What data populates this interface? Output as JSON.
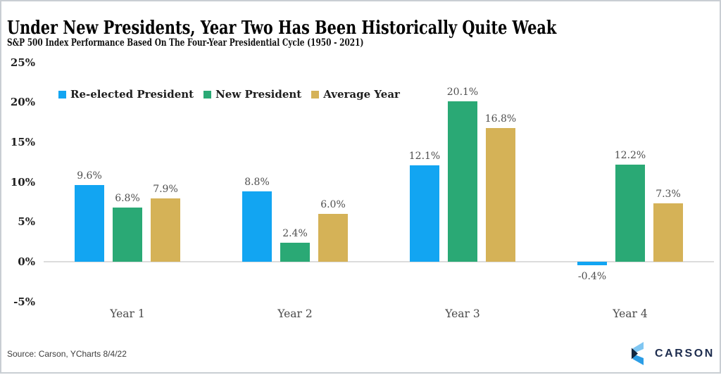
{
  "header": {
    "title": "Under New Presidents, Year Two Has Been Historically Quite Weak",
    "subtitle": "S&P 500 Index Performance Based On The Four-Year Presidential Cycle (1950 - 2021)"
  },
  "chart_data": {
    "type": "bar",
    "title": "Under New Presidents, Year Two Has Been Historically Quite Weak",
    "subtitle": "S&P 500 Index Performance Based On The Four-Year Presidential Cycle (1950 - 2021)",
    "categories": [
      "Year 1",
      "Year 2",
      "Year 3",
      "Year 4"
    ],
    "series": [
      {
        "name": "Re-elected President",
        "color": "#12a5f2",
        "values": [
          9.6,
          8.8,
          12.1,
          -0.4
        ]
      },
      {
        "name": "New President",
        "color": "#2aa975",
        "values": [
          6.8,
          2.4,
          20.1,
          12.2
        ]
      },
      {
        "name": "Average Year",
        "color": "#d5b257",
        "values": [
          7.9,
          6.0,
          16.8,
          7.3
        ]
      }
    ],
    "value_label_suffix": "%",
    "yticks": [
      25,
      20,
      15,
      10,
      5,
      0,
      -5
    ],
    "ytick_suffix": "%",
    "ylim": [
      -7.5,
      26.5
    ],
    "grid": "zero-line-only",
    "legend_position": "top-left",
    "xlabel": "",
    "ylabel": ""
  },
  "footer": {
    "source": "Source: Carson, YCharts 8/4/22",
    "logo_text": "CARSON"
  },
  "logo_colors": {
    "navy": "#1d2c4e",
    "light_blue": "#7fc6f2",
    "mid_blue": "#2b9de6",
    "dark_triangle": "#12263f"
  }
}
